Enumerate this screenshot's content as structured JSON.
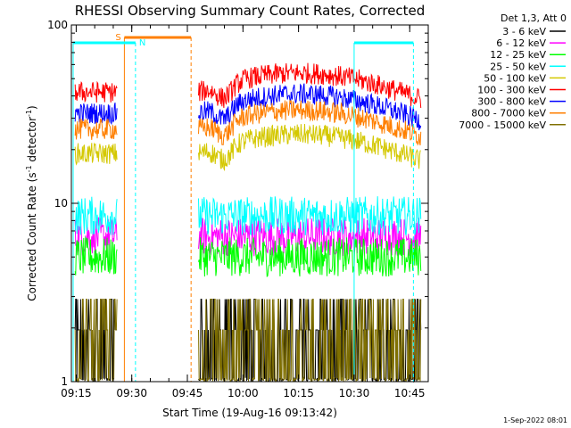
{
  "chart_data": {
    "type": "line",
    "title": "RHESSI Observing Summary Count Rates, Corrected",
    "xlabel": "Start Time (19-Aug-16 09:13:42)",
    "ylabel_main": "Corrected Count Rate (s",
    "ylabel_sup1": "-1",
    "ylabel_mid": " detector",
    "ylabel_sup2": "-1",
    "ylabel_end": ")",
    "yscale": "log",
    "ylim": [
      1,
      100
    ],
    "xlim": [
      "09:13:42",
      "10:50:00"
    ],
    "x_ticks": [
      "09:15",
      "09:30",
      "09:45",
      "10:00",
      "10:15",
      "10:30",
      "10:45"
    ],
    "y_ticks": [
      "1",
      "10",
      "100"
    ],
    "legend_title": "Det 1,3, Att 0",
    "legend_position": "top-right",
    "footer_stamp": "1-Sep-2022 08:01",
    "flags": [
      {
        "label": "S",
        "color": "#ff7f00",
        "start": "09:28",
        "end": "09:46"
      },
      {
        "label": "N",
        "color": "#00ffff",
        "start": "09:31",
        "end": "09:31"
      }
    ],
    "data_gaps": [
      [
        "09:31",
        "09:48"
      ]
    ],
    "series": [
      {
        "name": "3 - 6 keV",
        "color": "#000000",
        "approx_level": 1.6
      },
      {
        "name": "6 - 12 keV",
        "color": "#ff00ff",
        "approx_level": 6.5
      },
      {
        "name": "12 - 25 keV",
        "color": "#00ff00",
        "approx_level": 5.0
      },
      {
        "name": "25 - 50 keV",
        "color": "#00ffff",
        "approx_level": 8.5
      },
      {
        "name": "50 - 100 keV",
        "color": "#d4c800",
        "approx_level": 19
      },
      {
        "name": "100 - 300 keV",
        "color": "#ff0000",
        "approx_level": 42
      },
      {
        "name": "300 - 800 keV",
        "color": "#0000ff",
        "approx_level": 32
      },
      {
        "name": "800 - 7000 keV",
        "color": "#ff7f00",
        "approx_level": 26
      },
      {
        "name": "7000 - 15000 keV",
        "color": "#807000",
        "approx_level": 1.5
      }
    ]
  }
}
